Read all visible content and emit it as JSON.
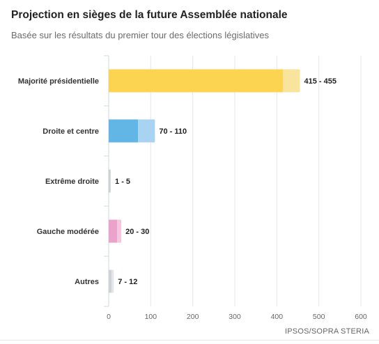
{
  "header": {
    "title": "Projection en sièges de la future Assemblée nationale",
    "subtitle": "Basée sur les résultats du premier tour des élections législatives"
  },
  "source": "IPSOS/SOPRA STERIA",
  "chart_data": {
    "type": "bar",
    "orientation": "horizontal",
    "stacked": true,
    "categories": [
      "Majorité présidentielle",
      "Droite et centre",
      "Extrême droite",
      "Gauche modérée",
      "Autres"
    ],
    "series": [
      {
        "values": [
          415,
          70,
          1,
          20,
          7
        ]
      },
      {
        "values": [
          40,
          40,
          4,
          10,
          5
        ]
      }
    ],
    "range_labels": [
      "415 - 455",
      "70 - 110",
      "1 - 5",
      "20 - 30",
      "7 - 12"
    ],
    "colors": {
      "dark": [
        "#fcd451",
        "#62b6e6",
        "#b7bcc2",
        "#eba3cc",
        "#cfd3d7"
      ],
      "light": [
        "#f9e49e",
        "#a8d4f1",
        "#d5d9dd",
        "#f4c7de",
        "#e3e6e9"
      ]
    },
    "x_ticks": [
      0,
      100,
      200,
      300,
      400,
      500,
      600
    ],
    "xlim": [
      0,
      600
    ],
    "grid": true
  }
}
